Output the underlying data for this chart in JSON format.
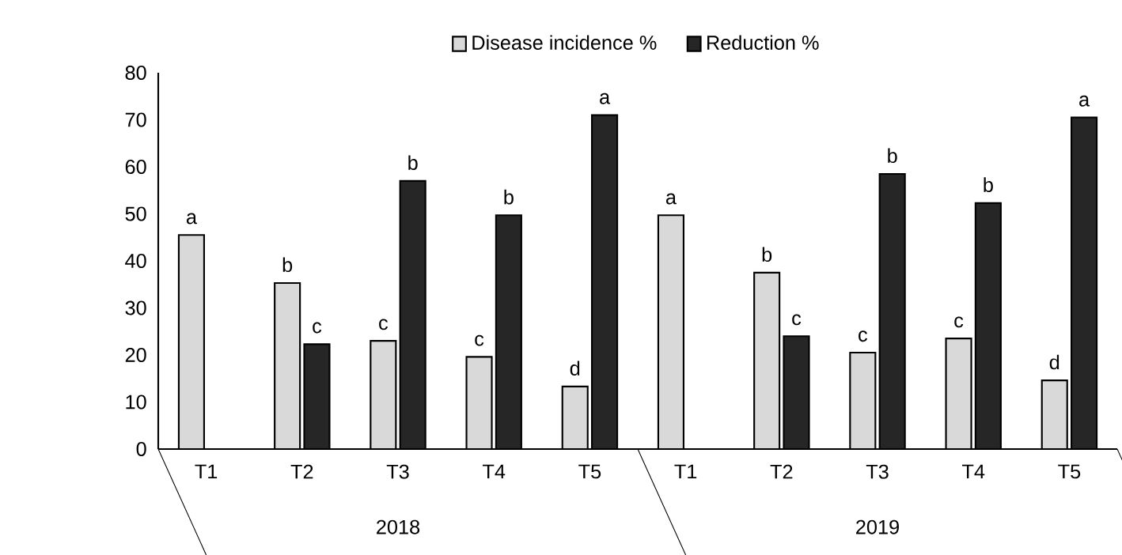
{
  "chart_data": {
    "type": "bar",
    "categories": [
      "T1",
      "T2",
      "T3",
      "T4",
      "T5",
      "T1",
      "T2",
      "T3",
      "T4",
      "T5"
    ],
    "series": [
      {
        "name": "Disease incidence %",
        "color": "#d9d9d9",
        "values": [
          45.5,
          35.3,
          23,
          19.6,
          13.3,
          49.7,
          37.5,
          20.5,
          23.5,
          14.6
        ],
        "value_labels": [
          "a",
          "b",
          "c",
          "c",
          "d",
          "a",
          "b",
          "c",
          "c",
          "d"
        ]
      },
      {
        "name": "Reduction  %",
        "color": "#262626",
        "values": [
          null,
          22.3,
          57,
          49.7,
          71,
          null,
          24,
          58.5,
          52.3,
          70.5
        ],
        "value_labels": [
          null,
          "c",
          "b",
          "b",
          "a",
          null,
          "c",
          "b",
          "b",
          "a"
        ]
      }
    ],
    "annotations": [
      "2018",
      "2019"
    ],
    "ylim": [
      0,
      80
    ],
    "yticks": [
      0,
      10,
      20,
      30,
      40,
      50,
      60,
      70,
      80
    ],
    "legend": "top"
  }
}
